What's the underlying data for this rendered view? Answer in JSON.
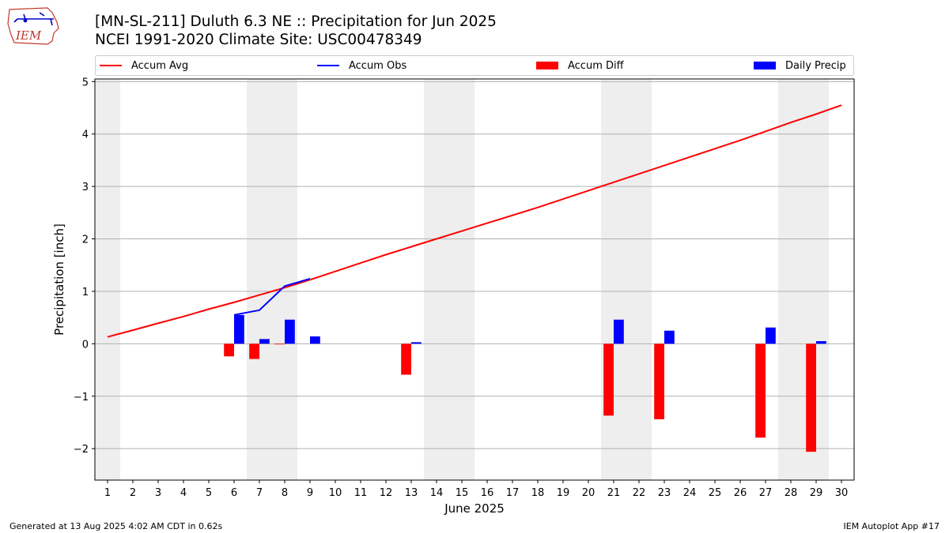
{
  "header": {
    "title_line1": "[MN-SL-211] Duluth 6.3 NE :: Precipitation for Jun 2025",
    "title_line2": "NCEI 1991-2020 Climate Site: USC00478349"
  },
  "logo": {
    "text": "IEM",
    "icon": "iem-iowa-state-logo-icon"
  },
  "legend": {
    "items": [
      {
        "label": "Accum Avg",
        "color": "#ff0000",
        "kind": "line"
      },
      {
        "label": "Accum Obs",
        "color": "#0000ff",
        "kind": "line"
      },
      {
        "label": "Accum Diff",
        "color": "#ff0000",
        "kind": "bar"
      },
      {
        "label": "Daily Precip",
        "color": "#0000ff",
        "kind": "bar"
      }
    ]
  },
  "footer": {
    "left": "Generated at 13 Aug 2025 4:02 AM CDT in 0.62s",
    "right": "IEM Autoplot App #17"
  },
  "chart_data": {
    "type": "bar",
    "xlabel": "June 2025",
    "ylabel": "Precipitation [inch]",
    "xlim": [
      0.5,
      30.5
    ],
    "ylim": [
      -2.6,
      5.05
    ],
    "yticks": [
      -2,
      -1,
      0,
      1,
      2,
      3,
      4,
      5
    ],
    "ytick_labels": [
      "−2",
      "−1",
      "0",
      "1",
      "2",
      "3",
      "4",
      "5"
    ],
    "xticks": [
      1,
      2,
      3,
      4,
      5,
      6,
      7,
      8,
      9,
      10,
      11,
      12,
      13,
      14,
      15,
      16,
      17,
      18,
      19,
      20,
      21,
      22,
      23,
      24,
      25,
      26,
      27,
      28,
      29,
      30
    ],
    "grid": "horizontal",
    "weekend_shading": [
      [
        0.5,
        1.5
      ],
      [
        6.5,
        8.5
      ],
      [
        13.5,
        15.5
      ],
      [
        20.5,
        22.5
      ],
      [
        27.5,
        29.5
      ]
    ],
    "shading_color": "#eeeeee",
    "series": [
      {
        "name": "Accum Avg",
        "kind": "line",
        "color": "#ff0000",
        "x": [
          1,
          2,
          3,
          4,
          5,
          6,
          7,
          8,
          9,
          10,
          11,
          12,
          13,
          14,
          15,
          16,
          17,
          18,
          19,
          20,
          21,
          22,
          23,
          24,
          25,
          26,
          27,
          28,
          29,
          30
        ],
        "values": [
          0.13,
          0.26,
          0.39,
          0.52,
          0.66,
          0.79,
          0.93,
          1.07,
          1.22,
          1.38,
          1.54,
          1.7,
          1.85,
          2.0,
          2.15,
          2.3,
          2.45,
          2.6,
          2.76,
          2.92,
          3.08,
          3.24,
          3.4,
          3.56,
          3.72,
          3.88,
          4.05,
          4.22,
          4.38,
          4.55
        ]
      },
      {
        "name": "Accum Obs",
        "kind": "line",
        "color": "#0000ff",
        "x": [
          6,
          7,
          8,
          9
        ],
        "values": [
          0.55,
          0.64,
          1.1,
          1.24
        ]
      },
      {
        "name": "Accum Diff",
        "kind": "bar",
        "color": "#ff0000",
        "offset": -0.2,
        "x": [
          6,
          7,
          8,
          13,
          21,
          23,
          27,
          29
        ],
        "values": [
          -0.24,
          -0.29,
          -0.01,
          -0.59,
          -1.37,
          -1.44,
          -1.79,
          -2.06
        ]
      },
      {
        "name": "Daily Precip",
        "kind": "bar",
        "color": "#0000ff",
        "offset": 0.2,
        "x": [
          6,
          7,
          8,
          9,
          13,
          21,
          23,
          27,
          29
        ],
        "values": [
          0.55,
          0.09,
          0.46,
          0.14,
          0.03,
          0.46,
          0.25,
          0.31,
          0.05
        ]
      }
    ]
  }
}
